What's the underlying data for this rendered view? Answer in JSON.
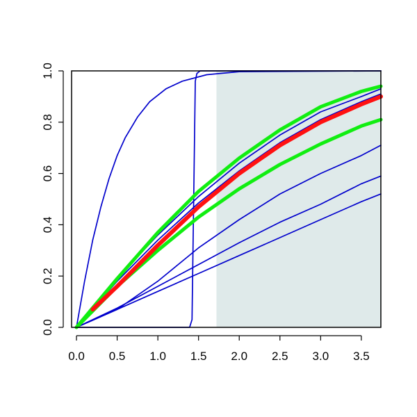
{
  "chart_data": {
    "type": "line",
    "title": "",
    "xlabel": "",
    "ylabel": "",
    "xlim": [
      -0.06,
      3.74
    ],
    "ylim": [
      0,
      1.0
    ],
    "x_ticks": [
      0.0,
      0.5,
      1.0,
      1.5,
      2.0,
      2.5,
      3.0,
      3.5
    ],
    "x_tick_labels": [
      "0.0",
      "0.5",
      "1.0",
      "1.5",
      "2.0",
      "2.5",
      "3.0",
      "3.5"
    ],
    "y_ticks": [
      0.0,
      0.2,
      0.4,
      0.6,
      0.8,
      1.0
    ],
    "y_tick_labels": [
      "0.0",
      "0.2",
      "0.4",
      "0.6",
      "0.8",
      "1.0"
    ],
    "grid": false,
    "legend": "none",
    "shaded_region": {
      "x_from": 1.72,
      "x_to": 3.74,
      "y_from": 0,
      "y_to": 1.0,
      "color": "#dfeaea"
    },
    "series": [
      {
        "color": "#0000cc",
        "width": 1.7,
        "x": [
          0,
          0.1,
          0.2,
          0.3,
          0.4,
          0.5,
          0.6,
          0.75,
          0.9,
          1.1,
          1.3,
          1.6,
          2.0,
          3.74
        ],
        "values": [
          0,
          0.18,
          0.34,
          0.47,
          0.58,
          0.67,
          0.74,
          0.82,
          0.88,
          0.93,
          0.96,
          0.985,
          0.997,
          1.0
        ]
      },
      {
        "color": "#0000cc",
        "width": 1.7,
        "x": [
          0,
          1.39,
          1.42,
          1.44,
          1.46,
          1.48,
          1.52,
          3.74
        ],
        "values": [
          0,
          0,
          0.03,
          0.5,
          0.96,
          0.99,
          1.0,
          1.0
        ]
      },
      {
        "color": "#0000cc",
        "width": 1.7,
        "x": [
          0,
          0.5,
          1.0,
          1.5,
          2.0,
          2.5,
          3.0,
          3.5,
          3.74
        ],
        "values": [
          0,
          0.19,
          0.36,
          0.51,
          0.64,
          0.75,
          0.84,
          0.9,
          0.93
        ]
      },
      {
        "color": "#0000cc",
        "width": 1.7,
        "x": [
          0,
          0.5,
          1.0,
          1.5,
          2.0,
          2.5,
          3.0,
          3.5,
          3.74
        ],
        "values": [
          0,
          0.18,
          0.34,
          0.485,
          0.61,
          0.72,
          0.81,
          0.88,
          0.91
        ]
      },
      {
        "color": "#0000cc",
        "width": 1.7,
        "x": [
          0,
          0.5,
          1.0,
          1.5,
          2.0,
          2.5,
          3.0,
          3.5,
          3.74
        ],
        "values": [
          0,
          0.07,
          0.18,
          0.31,
          0.42,
          0.52,
          0.6,
          0.67,
          0.71
        ]
      },
      {
        "color": "#0000cc",
        "width": 1.7,
        "x": [
          0,
          0.5,
          1.0,
          1.5,
          2.0,
          2.5,
          3.0,
          3.5,
          3.74
        ],
        "values": [
          0,
          0.075,
          0.16,
          0.245,
          0.33,
          0.41,
          0.48,
          0.56,
          0.59
        ]
      },
      {
        "color": "#0000cc",
        "width": 1.7,
        "x": [
          0,
          0.5,
          1.0,
          1.5,
          2.0,
          2.5,
          3.0,
          3.5,
          3.74
        ],
        "values": [
          0,
          0.07,
          0.14,
          0.21,
          0.28,
          0.35,
          0.42,
          0.49,
          0.52
        ]
      },
      {
        "color": "#11ee11",
        "width": 5,
        "x": [
          0,
          0.5,
          1.0,
          1.5,
          2.0,
          2.5,
          3.0,
          3.5,
          3.74
        ],
        "values": [
          0,
          0.19,
          0.37,
          0.53,
          0.66,
          0.77,
          0.86,
          0.92,
          0.94
        ]
      },
      {
        "color": "#11ee11",
        "width": 5,
        "x": [
          0,
          0.5,
          1.0,
          1.5,
          2.0,
          2.5,
          3.0,
          3.5,
          3.74
        ],
        "values": [
          0,
          0.16,
          0.3,
          0.43,
          0.54,
          0.635,
          0.715,
          0.785,
          0.81
        ]
      },
      {
        "color": "#ff1111",
        "width": 6,
        "x": [
          0.2,
          0.5,
          1.0,
          1.5,
          2.0,
          2.5,
          3.0,
          3.5,
          3.74
        ],
        "values": [
          0.07,
          0.16,
          0.32,
          0.47,
          0.6,
          0.71,
          0.8,
          0.87,
          0.9
        ]
      }
    ]
  }
}
